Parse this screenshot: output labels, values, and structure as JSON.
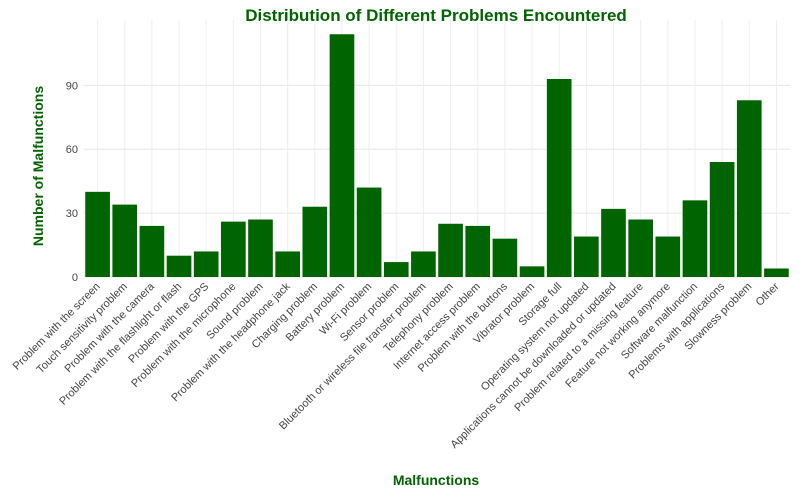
{
  "chart_data": {
    "type": "bar",
    "title": "Distribution of Different Problems Encountered",
    "xlabel": "Malfunctions",
    "ylabel": "Number of Malfunctions",
    "ylim": [
      0,
      116
    ],
    "yticks": [
      0,
      30,
      60,
      90
    ],
    "grid": true,
    "bar_color": "#006400",
    "categories": [
      "Problem with the screen",
      "Touch sensitivity problem",
      "Problem with the camera",
      "Problem with the flashlight or flash",
      "Problem with the GPS",
      "Problem with the microphone",
      "Sound problem",
      "Problem with the headphone jack",
      "Charging problem",
      "Battery problem",
      "Wi-Fi problem",
      "Sensor problem",
      "Bluetooth or wireless file transfer problem",
      "Telephony problem",
      "Internet access problem",
      "Problem with the buttons",
      "Vibrator problem",
      "Storage full",
      "Operating system not updated",
      "Applications cannot be downloaded or updated",
      "Problem related to a missing feature",
      "Feature not working anymore",
      "Software malfunction",
      "Problems with applications",
      "Slowness problem",
      "Other"
    ],
    "values": [
      40,
      34,
      24,
      10,
      12,
      26,
      27,
      12,
      33,
      114,
      42,
      7,
      12,
      25,
      24,
      18,
      5,
      93,
      19,
      32,
      27,
      19,
      36,
      54,
      83,
      4
    ]
  }
}
